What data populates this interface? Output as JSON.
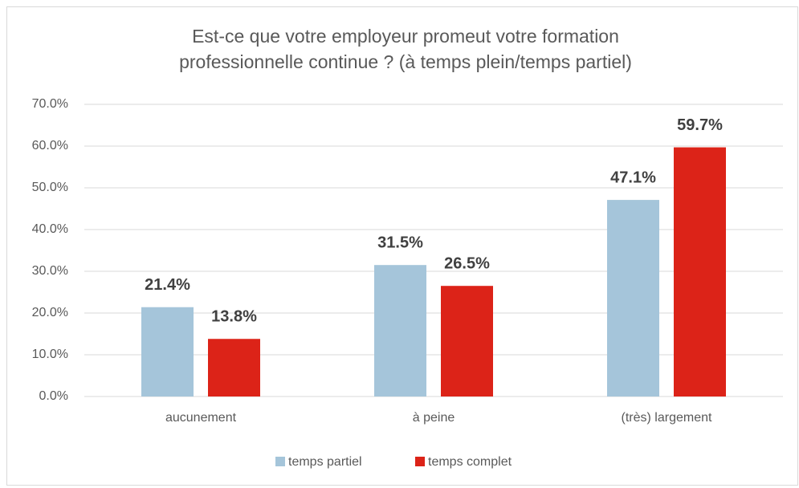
{
  "chart_data": {
    "type": "bar",
    "title": [
      "Est-ce que votre employeur promeut votre formation",
      "professionnelle continue ? (à temps plein/temps partiel)"
    ],
    "categories": [
      "aucunement",
      "à peine",
      "(très) largement"
    ],
    "series": [
      {
        "name": "temps partiel",
        "color": "#a5c5da",
        "values": [
          21.4,
          31.5,
          47.1
        ],
        "value_labels": [
          "21.4%",
          "31.5%",
          "47.1%"
        ]
      },
      {
        "name": "temps complet",
        "color": "#dc2318",
        "values": [
          13.8,
          26.5,
          59.7
        ],
        "value_labels": [
          "13.8%",
          "26.5%",
          "59.7%"
        ]
      }
    ],
    "ylim": [
      0,
      70
    ],
    "yticks": [
      {
        "value": 0,
        "label": "0.0%"
      },
      {
        "value": 10,
        "label": "10.0%"
      },
      {
        "value": 20,
        "label": "20.0%"
      },
      {
        "value": 30,
        "label": "30.0%"
      },
      {
        "value": 40,
        "label": "40.0%"
      },
      {
        "value": 50,
        "label": "50.0%"
      },
      {
        "value": 60,
        "label": "60.0%"
      },
      {
        "value": 70,
        "label": "70.0%"
      }
    ],
    "grid": true,
    "legend": "bottom"
  }
}
